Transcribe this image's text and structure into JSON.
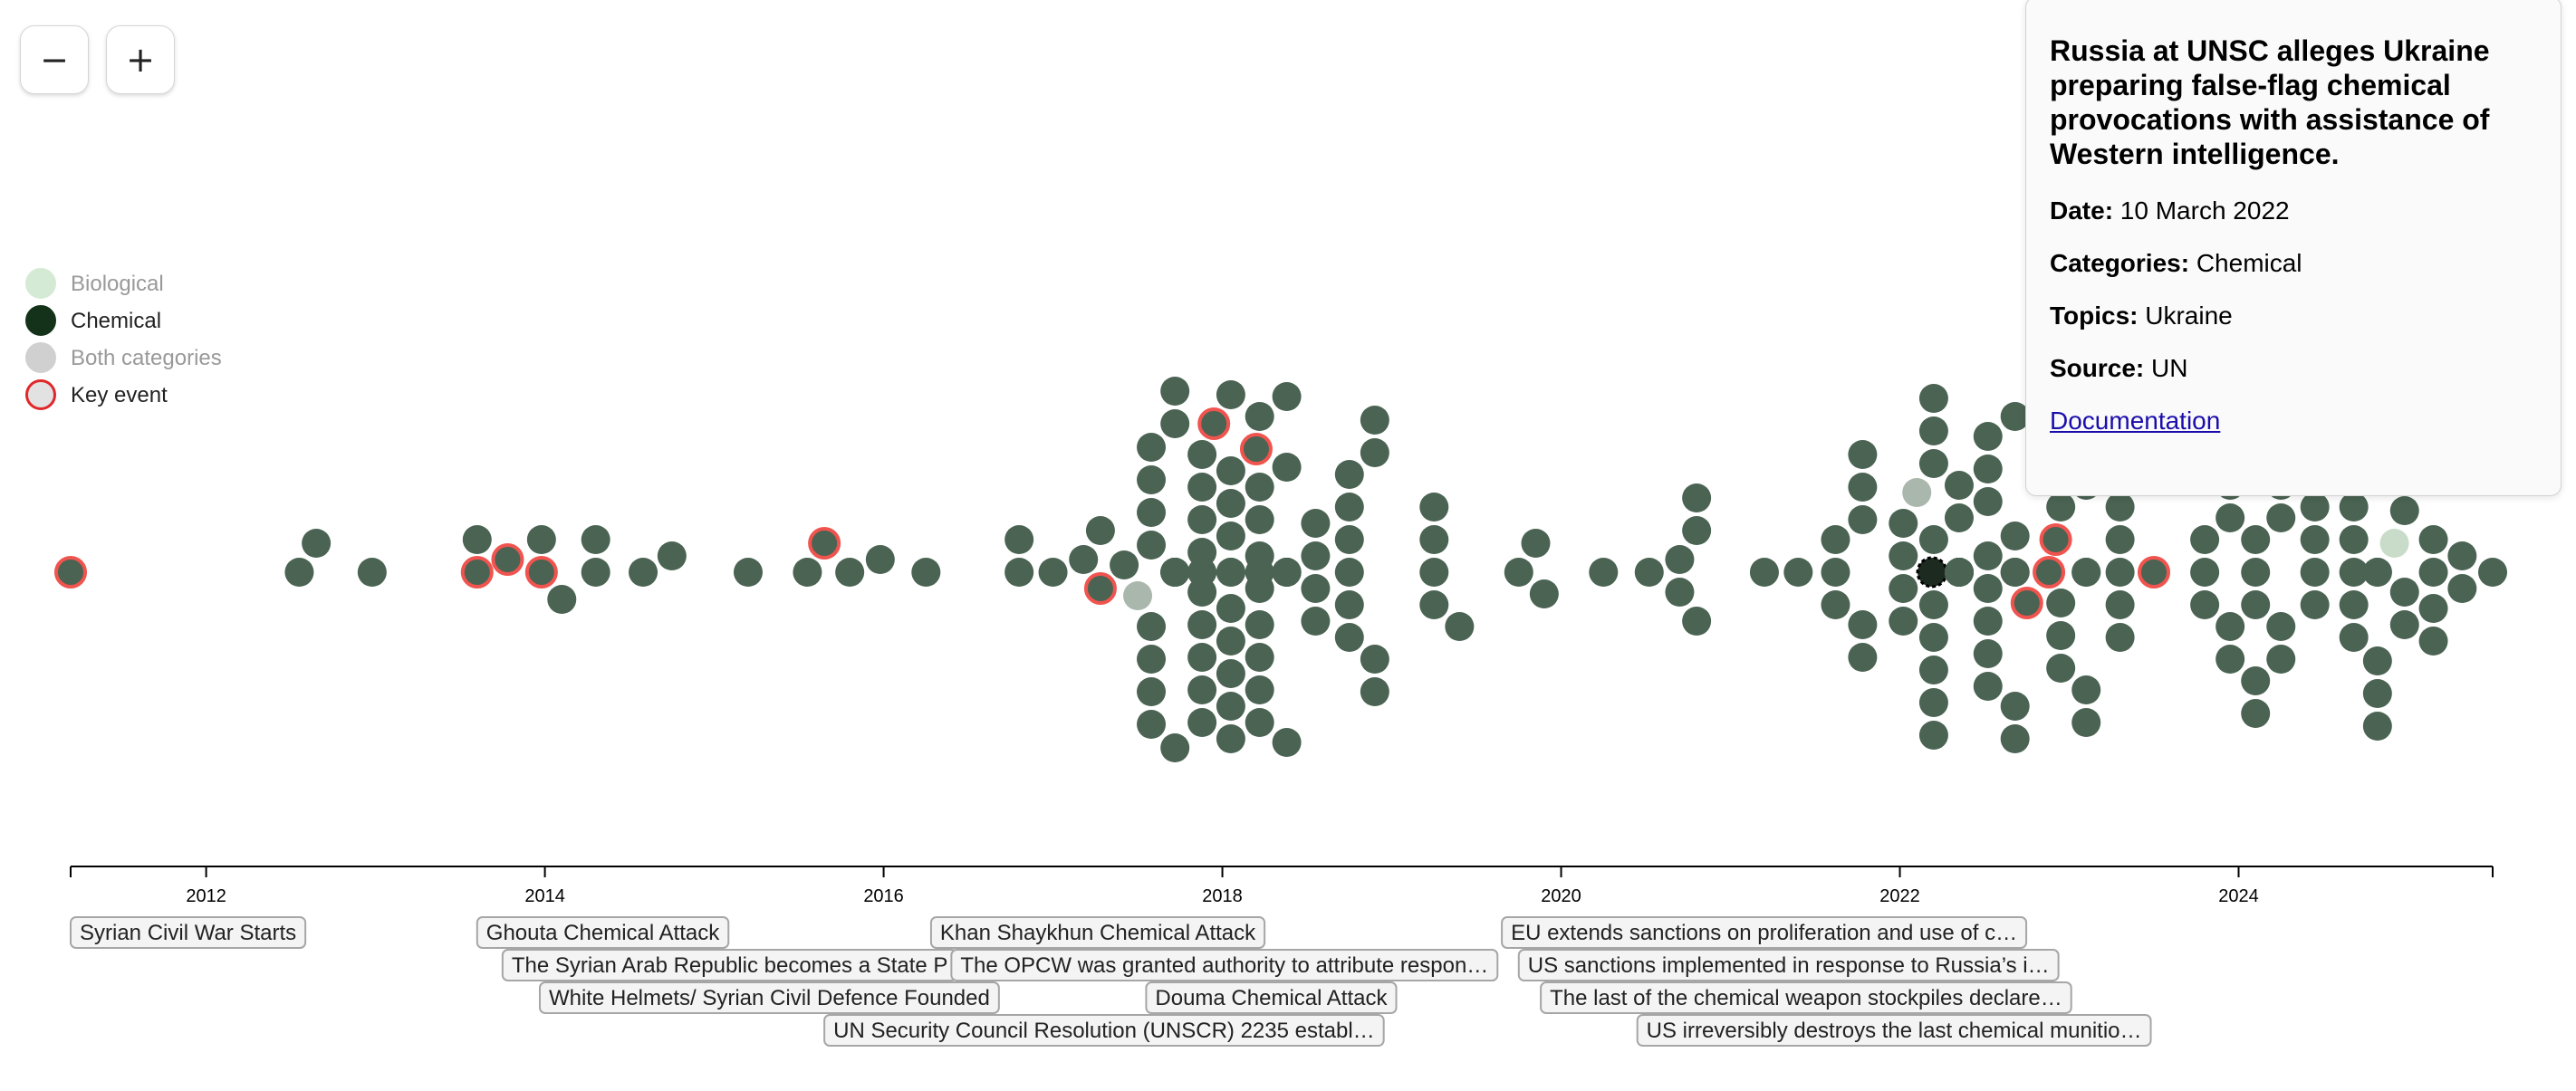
{
  "zoom": {
    "out_label": "−",
    "in_label": "+"
  },
  "legend": [
    {
      "label": "Biological",
      "fill": "#d5ead5",
      "stroke": "#d5ead5",
      "text_color": "#999999",
      "key": "biological"
    },
    {
      "label": "Chemical",
      "fill": "#143219",
      "stroke": "#143219",
      "text_color": "#222222",
      "key": "chemical"
    },
    {
      "label": "Both categories",
      "fill": "#d0d0d0",
      "stroke": "#d0d0d0",
      "text_color": "#999999",
      "key": "both"
    },
    {
      "label": "Key event",
      "fill": "#e2e2e2",
      "stroke": "#e0282b",
      "text_color": "#222222",
      "key": "key-event"
    }
  ],
  "colors": {
    "chemical_dot": "#4a6352",
    "both_dot": "#a9b7ad",
    "key_event_stroke": "#f0544f",
    "axis": "#000000",
    "annotation_bg": "#f4f4f4",
    "annotation_border": "#a6a6a6",
    "annotation_text": "#222222"
  },
  "tooltip": {
    "title": "Russia at UNSC alleges Ukraine preparing false-flag chemical provocations with assistance of Western intelligence.",
    "date_label": "Date:",
    "date": "10 March 2022",
    "categories_label": "Categories:",
    "categories": "Chemical",
    "topics_label": "Topics:",
    "topics": "Ukraine",
    "source_label": "Source:",
    "source": "UN",
    "link": "Documentation"
  },
  "chart_data": {
    "type": "scatter",
    "chart_subtype": "beeswarm timeline",
    "x_axis": {
      "start": 2011.2,
      "end": 2025.5,
      "ticks": [
        2012,
        2014,
        2016,
        2018,
        2020,
        2022,
        2024
      ]
    },
    "selected_event": {
      "date": "2022-03-10",
      "x": 2022.19
    },
    "events": [
      {
        "x": 2011.2,
        "cat": "chemical",
        "key": true
      },
      {
        "x": 2012.55,
        "cat": "chemical"
      },
      {
        "x": 2012.65,
        "cat": "chemical"
      },
      {
        "x": 2012.98,
        "cat": "chemical"
      },
      {
        "x": 2013.6,
        "cat": "chemical",
        "key": true
      },
      {
        "x": 2013.6,
        "cat": "chemical"
      },
      {
        "x": 2013.78,
        "cat": "chemical",
        "key": true
      },
      {
        "x": 2013.98,
        "cat": "chemical",
        "key": true
      },
      {
        "x": 2013.98,
        "cat": "chemical"
      },
      {
        "x": 2014.1,
        "cat": "chemical"
      },
      {
        "x": 2014.3,
        "cat": "chemical"
      },
      {
        "x": 2014.3,
        "cat": "chemical"
      },
      {
        "x": 2014.58,
        "cat": "chemical"
      },
      {
        "x": 2014.75,
        "cat": "chemical"
      },
      {
        "x": 2015.2,
        "cat": "chemical"
      },
      {
        "x": 2015.55,
        "cat": "chemical"
      },
      {
        "x": 2015.65,
        "cat": "chemical",
        "key": true
      },
      {
        "x": 2015.8,
        "cat": "chemical"
      },
      {
        "x": 2015.98,
        "cat": "chemical"
      },
      {
        "x": 2016.25,
        "cat": "chemical"
      },
      {
        "x": 2016.8,
        "cat": "chemical"
      },
      {
        "x": 2016.8,
        "cat": "chemical"
      },
      {
        "x": 2017.0,
        "cat": "chemical"
      },
      {
        "x": 2017.18,
        "cat": "chemical"
      },
      {
        "x": 2017.28,
        "cat": "chemical",
        "key": true
      },
      {
        "x": 2017.28,
        "cat": "chemical"
      },
      {
        "x": 2017.42,
        "cat": "chemical"
      },
      {
        "x": 2017.5,
        "cat": "both"
      },
      {
        "x": 2017.58,
        "cat": "chemical",
        "n": 8
      },
      {
        "x": 2017.72,
        "cat": "chemical",
        "n": 10
      },
      {
        "x": 2017.88,
        "cat": "chemical",
        "n": 11
      },
      {
        "x": 2017.95,
        "cat": "chemical",
        "key": true
      },
      {
        "x": 2018.05,
        "cat": "chemical",
        "n": 11
      },
      {
        "x": 2018.2,
        "cat": "chemical",
        "key": true
      },
      {
        "x": 2018.22,
        "cat": "chemical",
        "n": 10
      },
      {
        "x": 2018.38,
        "cat": "chemical",
        "n": 8
      },
      {
        "x": 2018.55,
        "cat": "chemical",
        "n": 4
      },
      {
        "x": 2018.75,
        "cat": "chemical",
        "n": 6
      },
      {
        "x": 2018.9,
        "cat": "chemical",
        "n": 4
      },
      {
        "x": 2019.25,
        "cat": "chemical",
        "n": 4
      },
      {
        "x": 2019.4,
        "cat": "chemical"
      },
      {
        "x": 2019.75,
        "cat": "chemical"
      },
      {
        "x": 2019.85,
        "cat": "chemical"
      },
      {
        "x": 2019.9,
        "cat": "chemical"
      },
      {
        "x": 2020.25,
        "cat": "chemical"
      },
      {
        "x": 2020.52,
        "cat": "chemical"
      },
      {
        "x": 2020.7,
        "cat": "chemical",
        "n": 2
      },
      {
        "x": 2020.8,
        "cat": "chemical",
        "n": 3
      },
      {
        "x": 2021.2,
        "cat": "chemical"
      },
      {
        "x": 2021.4,
        "cat": "chemical"
      },
      {
        "x": 2021.62,
        "cat": "chemical",
        "n": 3
      },
      {
        "x": 2021.78,
        "cat": "chemical",
        "n": 5
      },
      {
        "x": 2022.02,
        "cat": "chemical",
        "n": 4
      },
      {
        "x": 2022.1,
        "cat": "both"
      },
      {
        "x": 2022.19,
        "cat": "chemical",
        "selected": true
      },
      {
        "x": 2022.2,
        "cat": "chemical",
        "n": 9
      },
      {
        "x": 2022.35,
        "cat": "chemical",
        "n": 10
      },
      {
        "x": 2022.52,
        "cat": "chemical",
        "n": 8
      },
      {
        "x": 2022.68,
        "cat": "chemical",
        "n": 6
      },
      {
        "x": 2022.75,
        "cat": "chemical",
        "key": true
      },
      {
        "x": 2022.88,
        "cat": "chemical",
        "key": true
      },
      {
        "x": 2022.92,
        "cat": "chemical",
        "key": true
      },
      {
        "x": 2022.95,
        "cat": "chemical",
        "n": 4
      },
      {
        "x": 2023.1,
        "cat": "chemical",
        "n": 7
      },
      {
        "x": 2023.3,
        "cat": "chemical",
        "n": 5
      },
      {
        "x": 2023.5,
        "cat": "chemical",
        "key": true
      },
      {
        "x": 2023.8,
        "cat": "chemical",
        "n": 3
      },
      {
        "x": 2023.95,
        "cat": "chemical",
        "n": 5
      },
      {
        "x": 2024.1,
        "cat": "chemical",
        "n": 6
      },
      {
        "x": 2024.25,
        "cat": "chemical",
        "n": 5
      },
      {
        "x": 2024.45,
        "cat": "chemical",
        "n": 4
      },
      {
        "x": 2024.68,
        "cat": "chemical",
        "n": 6
      },
      {
        "x": 2024.82,
        "cat": "chemical",
        "n": 7
      },
      {
        "x": 2024.92,
        "cat": "biological"
      },
      {
        "x": 2024.98,
        "cat": "chemical",
        "n": 5
      },
      {
        "x": 2025.15,
        "cat": "chemical",
        "n": 4
      },
      {
        "x": 2025.32,
        "cat": "chemical",
        "n": 2
      },
      {
        "x": 2025.5,
        "cat": "chemical"
      }
    ],
    "annotations": [
      {
        "text": "Syrian Civil War Starts",
        "x": 2011.2,
        "row": 0
      },
      {
        "text": "Ghouta Chemical Attack",
        "x": 2013.6,
        "row": 0
      },
      {
        "text": "The Syrian Arab Republic becomes a State P",
        "x": 2013.75,
        "row": 1
      },
      {
        "text": "White Helmets/ Syrian Civil Defence Founded",
        "x": 2013.97,
        "row": 2
      },
      {
        "text": "UN Security Council Resolution (UNSCR) 2235 establ…",
        "x": 2015.65,
        "row": 3
      },
      {
        "text": "Khan Shaykhun Chemical Attack",
        "x": 2016.28,
        "row": 0
      },
      {
        "text": "The OPCW was granted authority to attribute respon…",
        "x": 2016.4,
        "row": 1
      },
      {
        "text": "Douma Chemical Attack",
        "x": 2017.55,
        "row": 2
      },
      {
        "text": "EU extends sanctions on proliferation and use of c…",
        "x": 2019.65,
        "row": 0
      },
      {
        "text": "US sanctions implemented in response to Russia’s i…",
        "x": 2019.75,
        "row": 1
      },
      {
        "text": "The last of the chemical weapon stockpiles declare…",
        "x": 2019.88,
        "row": 2
      },
      {
        "text": "US irreversibly destroys the last chemical munitio…",
        "x": 2020.45,
        "row": 3
      }
    ]
  }
}
